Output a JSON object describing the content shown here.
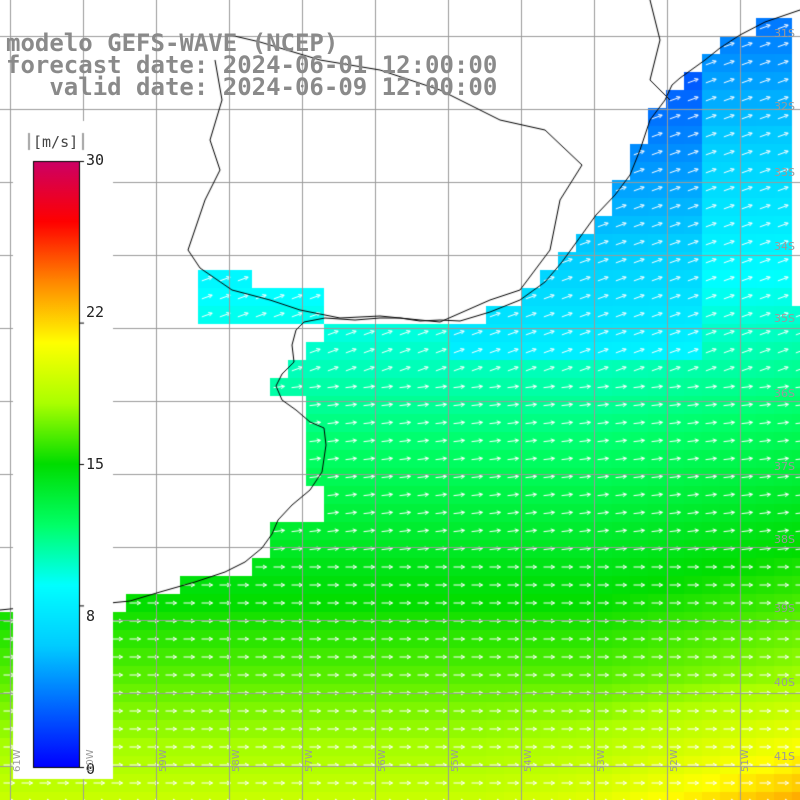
{
  "title": {
    "line1": "modelo GEFS-WAVE (NCEP)",
    "line2": "forecast date: 2024-06-01 12:00:00",
    "line3": "   valid date: 2024-06-09 12:00:00"
  },
  "colorbar": {
    "unit": "[m/s]",
    "min": 0,
    "max": 30,
    "ticks": [
      "30",
      "22",
      "15",
      "8",
      "0"
    ],
    "tick_values": [
      30,
      22,
      15,
      8,
      0
    ],
    "colors": [
      "#0000ff",
      "#0066ff",
      "#00ccff",
      "#00ffff",
      "#00ff66",
      "#00dd00",
      "#aaff00",
      "#ffff00",
      "#ff8800",
      "#ff0000",
      "#cc0066"
    ]
  },
  "latitude_labels": [
    "31S",
    "32S",
    "33S",
    "34S",
    "35S",
    "36S",
    "37S",
    "38S",
    "39S",
    "40S",
    "41S"
  ],
  "longitude_labels": [
    "61W",
    "60W",
    "59W",
    "58W",
    "57W",
    "56W",
    "55W",
    "54W",
    "53W",
    "52W",
    "51W"
  ],
  "field": {
    "variable": "wind speed",
    "arrow_color": "#ffffff",
    "land_color": "#ffffff",
    "coastline_color": "#000000",
    "grid_color": "#9a9a9a"
  }
}
